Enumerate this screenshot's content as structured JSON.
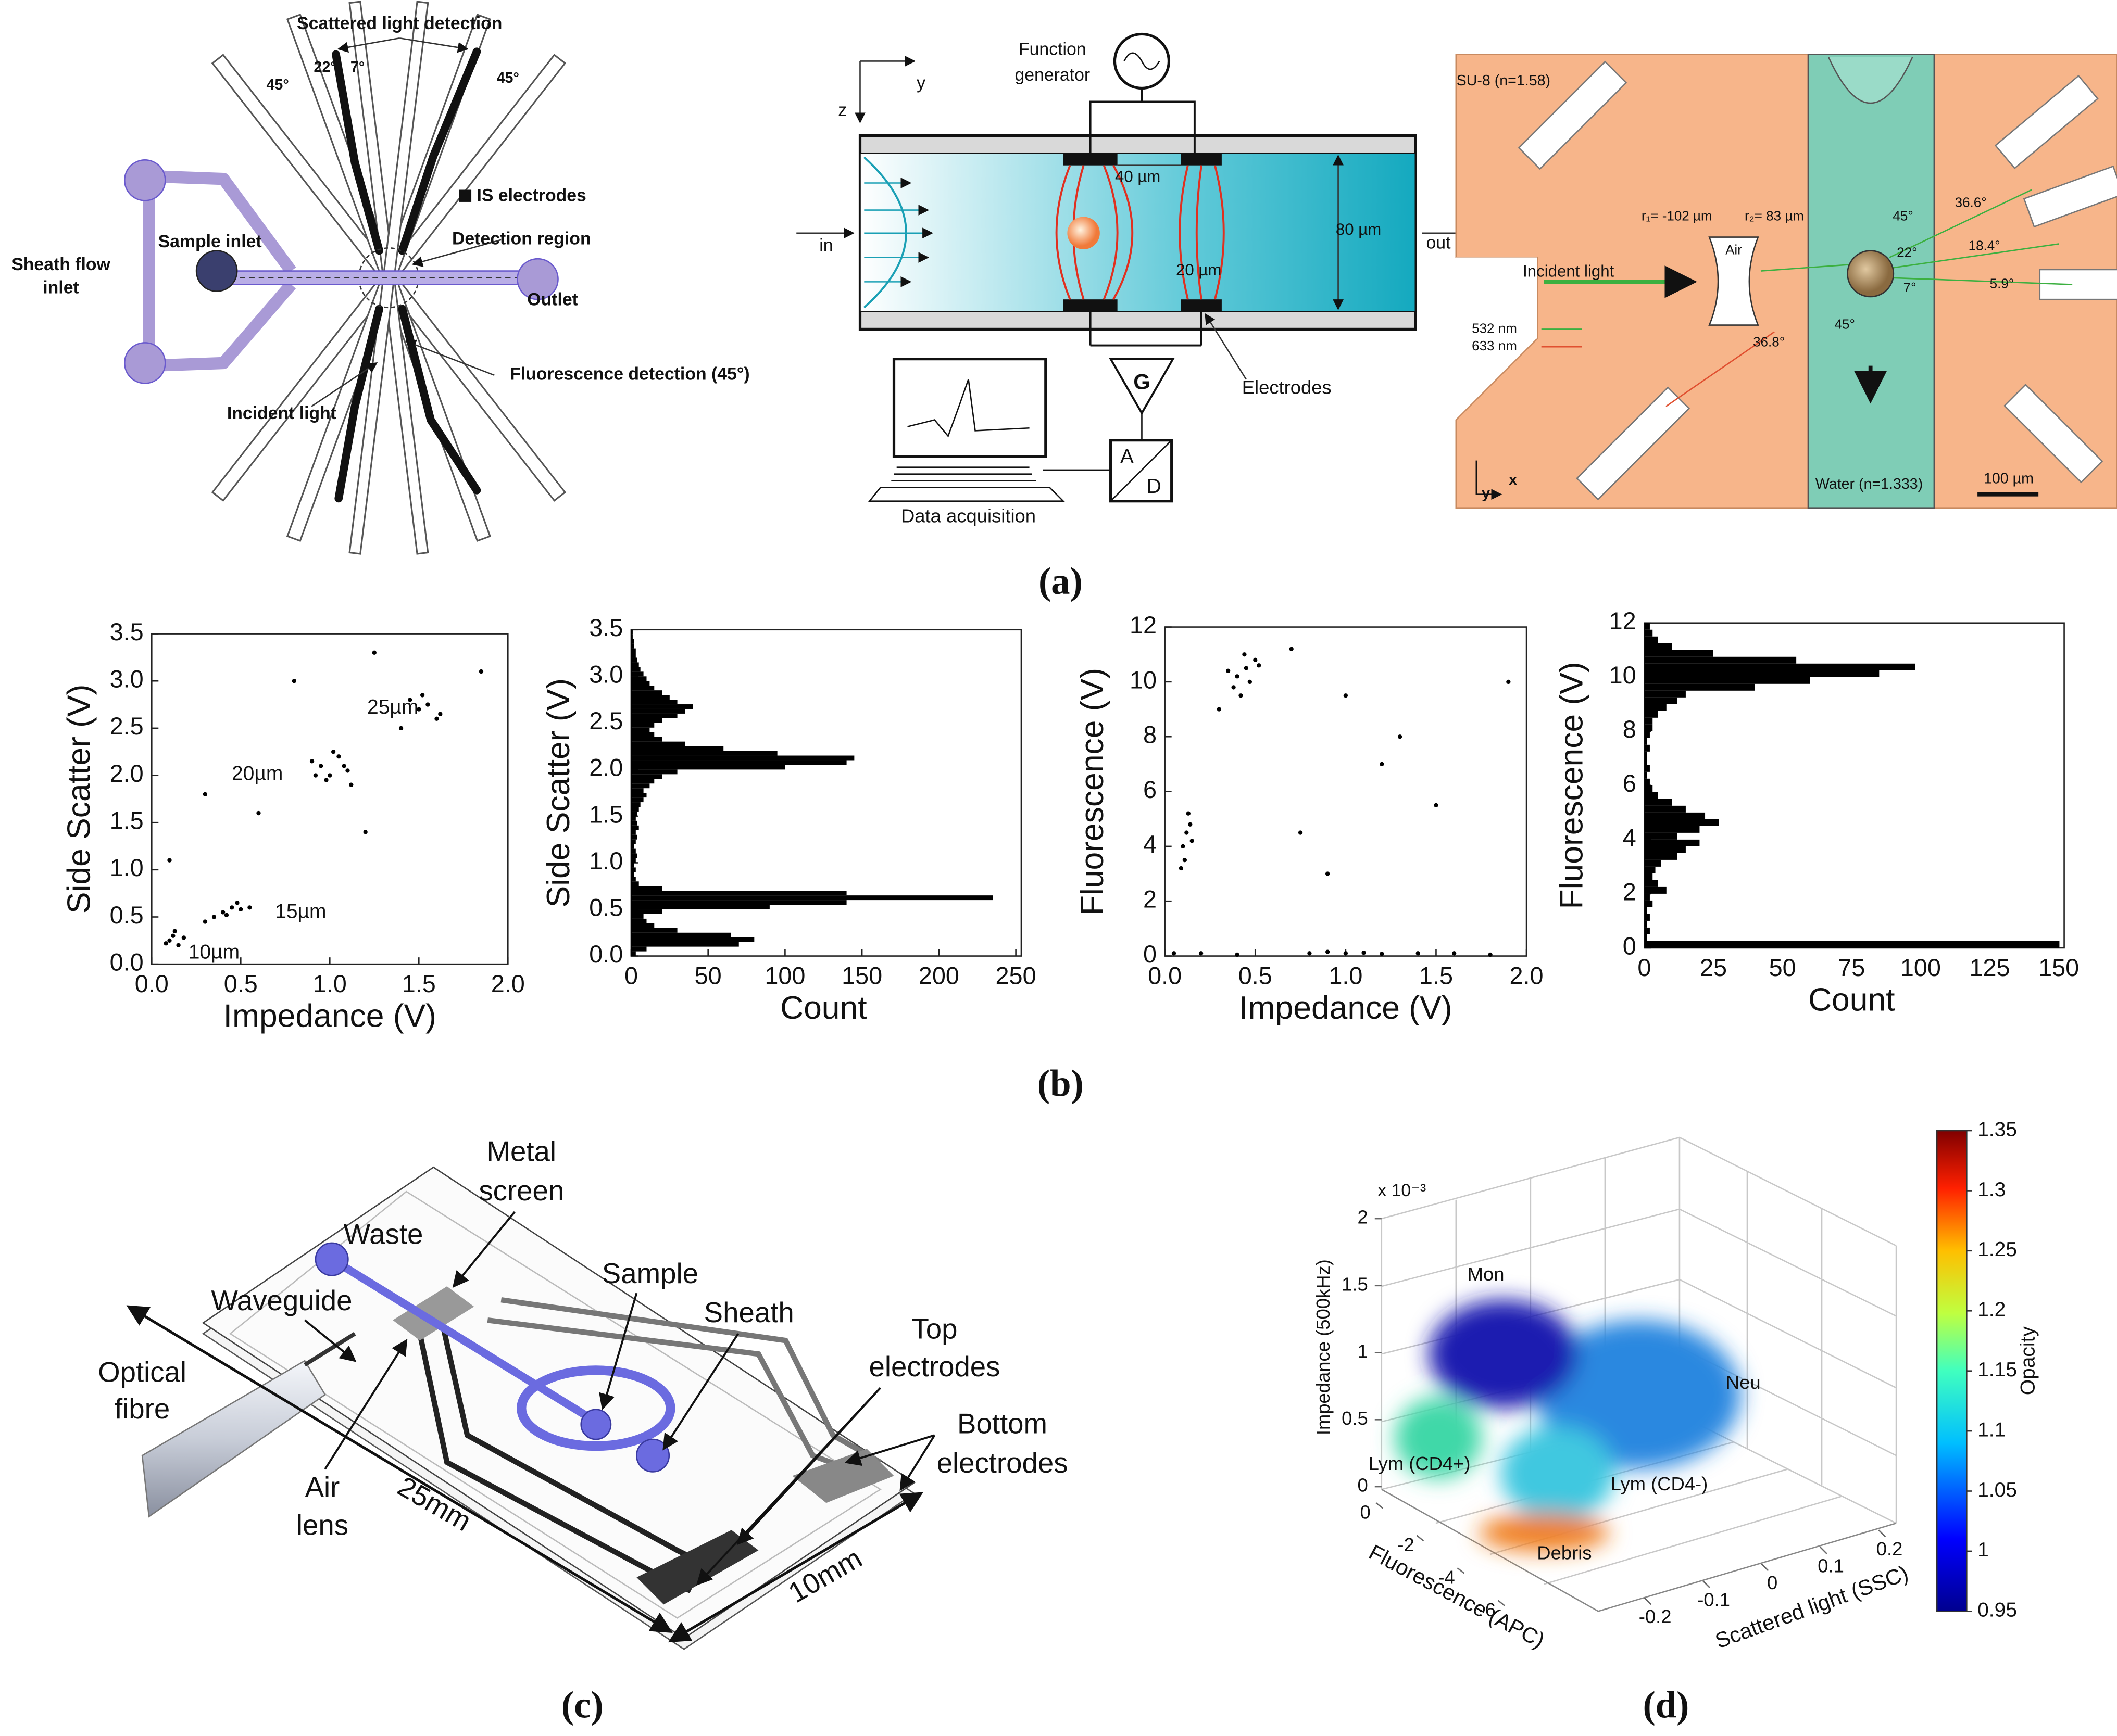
{
  "figure": {
    "panel_labels": [
      "(a)",
      "(b)",
      "(c)",
      "(d)"
    ],
    "a1": [
      "Scattered light detection",
      "22°",
      "7°",
      "45°",
      "45°",
      "IS electrodes",
      "Sheath flow",
      "inlet",
      "Sample inlet",
      "Detection region",
      "Outlet",
      "Fluorescence detection (45°)",
      "Incident light"
    ],
    "a2": [
      "z",
      "y",
      "Function",
      "generator",
      "40 µm",
      "80 µm",
      "in",
      "out",
      "20 µm",
      "Electrodes",
      "G",
      "A",
      "D",
      "Data acquisition"
    ],
    "a3": [
      "SU-8 (n=1.58)",
      "r₁= -102 µm",
      "r₂= 83 µm",
      "Air",
      "Incident light",
      "532 nm",
      "633 nm",
      "36.8°",
      "45°",
      "45°",
      "36.6°",
      "22°",
      "18.4°",
      "7°",
      "5.9°",
      "Water (n=1.333)",
      "100 µm",
      "x",
      "y"
    ],
    "c": [
      "Metal",
      "screen",
      "Waste",
      "Sample",
      "Sheath",
      "Waveguide",
      "Top",
      "electrodes",
      "Optical",
      "fibre",
      "Bottom",
      "electrodes",
      "Air",
      "lens",
      "25mm",
      "10mm"
    ],
    "d": {
      "exponent": "x 10⁻³",
      "zlabel": "Impedance (500kHz)",
      "xlabel": "Fluorescence (APC)",
      "ylabel": "Scattered light (SSC)",
      "colorbar_label": "Opacity",
      "clusters": [
        "Mon",
        "Neu",
        "Lym (CD4+)",
        "Lym (CD4-)",
        "Debris"
      ],
      "zlim": [
        0,
        2
      ],
      "zticks": [
        0,
        0.5,
        1,
        1.5,
        2
      ],
      "fluor_ticks": [
        0,
        -2,
        -4,
        -6
      ],
      "ssc_ticks": [
        -0.2,
        -0.1,
        0,
        0.1,
        0.2
      ],
      "clim": [
        0.95,
        1.35
      ],
      "colorbar_ticks": [
        0.95,
        1,
        1.05,
        1.1,
        1.15,
        1.2,
        1.25,
        1.3,
        1.35
      ]
    }
  },
  "chart_data": [
    {
      "type": "scatter",
      "xlabel": "Impedance (V)",
      "ylabel": "Side Scatter (V)",
      "color": "#000000",
      "annotations": [
        "25µm",
        "20µm",
        "15µm",
        "10µm"
      ],
      "xlim": [
        0,
        2
      ],
      "ylim": [
        0,
        3.5
      ],
      "xticks": [
        {
          "value": 0,
          "label": "0.0"
        },
        0.5,
        {
          "value": 1,
          "label": "1.0"
        },
        1.5,
        {
          "value": 2,
          "label": "2.0"
        }
      ],
      "yticks": [
        {
          "value": 0,
          "label": "0.0"
        },
        0.5,
        {
          "value": 1,
          "label": "1.0"
        },
        1.5,
        {
          "value": 2,
          "label": "2.0"
        },
        2.5,
        {
          "value": 3,
          "label": "3.0"
        },
        3.5
      ],
      "x": [
        0.1,
        0.12,
        0.15,
        0.08,
        0.13,
        0.18,
        0.4,
        0.45,
        0.5,
        0.42,
        0.48,
        0.55,
        0.35,
        0.3,
        0.95,
        1.0,
        1.05,
        1.1,
        0.9,
        0.98,
        1.02,
        1.08,
        0.92,
        1.12,
        1.5,
        1.55,
        1.6,
        1.45,
        1.62,
        1.52,
        0.8,
        1.2,
        0.3,
        1.85,
        0.1,
        1.4,
        0.6,
        1.25
      ],
      "y": [
        0.25,
        0.3,
        0.2,
        0.22,
        0.35,
        0.28,
        0.55,
        0.6,
        0.58,
        0.52,
        0.65,
        0.6,
        0.5,
        0.45,
        2.1,
        2.0,
        2.2,
        2.05,
        2.15,
        1.95,
        2.25,
        2.1,
        2.0,
        1.9,
        2.7,
        2.75,
        2.6,
        2.8,
        2.65,
        2.85,
        3.0,
        1.4,
        1.8,
        3.1,
        1.1,
        2.5,
        1.6,
        3.3
      ]
    },
    {
      "type": "histogram",
      "orientation": "horizontal",
      "xlabel": "Count",
      "ylabel": "Side Scatter (V)",
      "color": "#000000",
      "xlim": [
        0,
        250
      ],
      "ylim": [
        0,
        3.5
      ],
      "xticks": [
        0,
        50,
        100,
        150,
        200,
        250
      ],
      "yticks": [
        {
          "value": 0,
          "label": "0.0"
        },
        0.5,
        {
          "value": 1,
          "label": "1.0"
        },
        1.5,
        {
          "value": 2,
          "label": "2.0"
        },
        2.5,
        {
          "value": 3,
          "label": "3.0"
        },
        3.5
      ],
      "bins": [
        0,
        0.05,
        0.1,
        0.15,
        0.2,
        0.25,
        0.3,
        0.35,
        0.4,
        0.45,
        0.5,
        0.55,
        0.6,
        0.65,
        0.7,
        0.75,
        0.8,
        0.85,
        0.9,
        0.95,
        1.0,
        1.05,
        1.1,
        1.15,
        1.2,
        1.25,
        1.3,
        1.35,
        1.4,
        1.45,
        1.5,
        1.55,
        1.6,
        1.65,
        1.7,
        1.75,
        1.8,
        1.85,
        1.9,
        1.95,
        2.0,
        2.05,
        2.1,
        2.15,
        2.2,
        2.25,
        2.3,
        2.35,
        2.4,
        2.45,
        2.5,
        2.55,
        2.6,
        2.65,
        2.7,
        2.75,
        2.8,
        2.85,
        2.9,
        2.95,
        3.0,
        3.05,
        3.1,
        3.15,
        3.2,
        3.25,
        3.3,
        3.35,
        3.4,
        3.45,
        3.5
      ],
      "values": [
        3,
        10,
        70,
        80,
        65,
        30,
        15,
        10,
        8,
        20,
        90,
        140,
        235,
        140,
        20,
        5,
        3,
        2,
        3,
        2,
        3,
        4,
        3,
        2,
        3,
        4,
        3,
        5,
        4,
        3,
        4,
        5,
        6,
        8,
        10,
        8,
        12,
        15,
        20,
        30,
        100,
        140,
        145,
        95,
        60,
        35,
        20,
        15,
        12,
        15,
        20,
        30,
        35,
        40,
        30,
        25,
        20,
        15,
        12,
        10,
        8,
        6,
        5,
        4,
        3,
        3,
        2,
        2,
        1,
        1
      ]
    },
    {
      "type": "scatter",
      "xlabel": "Impedance (V)",
      "ylabel": "Fluorescence (V)",
      "color": "#000000",
      "xlim": [
        0,
        2
      ],
      "ylim": [
        0,
        12
      ],
      "xticks": [
        {
          "value": 0,
          "label": "0.0"
        },
        0.5,
        {
          "value": 1,
          "label": "1.0"
        },
        1.5,
        {
          "value": 2,
          "label": "2.0"
        }
      ],
      "yticks": [
        0,
        2,
        4,
        6,
        8,
        10,
        12
      ],
      "x": [
        0.4,
        0.45,
        0.38,
        0.5,
        0.42,
        0.47,
        0.35,
        0.52,
        0.44,
        0.3,
        0.12,
        0.1,
        0.14,
        0.11,
        0.13,
        0.09,
        0.15,
        0.05,
        0.2,
        0.4,
        0.8,
        0.9,
        1.0,
        1.1,
        1.2,
        1.4,
        1.6,
        1.8,
        0.7,
        1.0,
        1.2,
        1.5,
        0.9,
        1.3,
        1.9,
        0.75
      ],
      "y": [
        10.2,
        10.5,
        9.8,
        10.8,
        9.5,
        10.0,
        10.4,
        10.6,
        11.0,
        9.0,
        4.5,
        4.0,
        4.8,
        3.5,
        5.2,
        3.2,
        4.2,
        0.1,
        0.1,
        0.05,
        0.1,
        0.15,
        0.1,
        0.12,
        0.08,
        0.1,
        0.1,
        0.05,
        11.2,
        9.5,
        7.0,
        5.5,
        3.0,
        8.0,
        10.0,
        4.5
      ]
    },
    {
      "type": "histogram",
      "orientation": "horizontal",
      "xlabel": "Count",
      "ylabel": "Fluorescence (V)",
      "color": "#000000",
      "xlim": [
        0,
        150
      ],
      "ylim": [
        0,
        12
      ],
      "xticks": [
        0,
        25,
        50,
        75,
        100,
        125,
        150
      ],
      "yticks": [
        0,
        2,
        4,
        6,
        8,
        10,
        12
      ],
      "bins": [
        0,
        0.25,
        0.5,
        0.75,
        1,
        1.25,
        1.5,
        1.75,
        2,
        2.25,
        2.5,
        2.75,
        3,
        3.25,
        3.5,
        3.75,
        4,
        4.25,
        4.5,
        4.75,
        5,
        5.25,
        5.5,
        5.75,
        6,
        6.25,
        6.5,
        6.75,
        7,
        7.25,
        7.5,
        7.75,
        8,
        8.25,
        8.5,
        8.75,
        9,
        9.25,
        9.5,
        9.75,
        10,
        10.25,
        10.5,
        10.75,
        11,
        11.25,
        11.5,
        11.75,
        12
      ],
      "values": [
        150,
        1,
        2,
        1,
        2,
        1,
        3,
        2,
        8,
        5,
        3,
        4,
        6,
        12,
        15,
        20,
        12,
        20,
        27,
        22,
        15,
        10,
        5,
        3,
        2,
        1,
        2,
        1,
        1,
        2,
        1,
        2,
        3,
        3,
        5,
        8,
        12,
        15,
        40,
        60,
        85,
        98,
        55,
        25,
        10,
        5,
        3,
        2
      ]
    }
  ]
}
